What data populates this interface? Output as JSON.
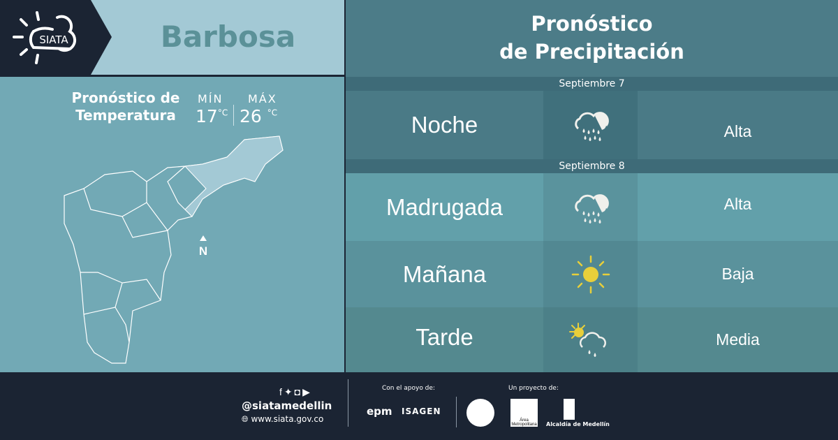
{
  "logo": {
    "text": "SIATA"
  },
  "header": {
    "city": "Barbosa",
    "title_line1": "Pronóstico",
    "title_line2": "de Precipitación"
  },
  "temperature": {
    "title_line1": "Pronóstico de",
    "title_line2": "Temperatura",
    "min_label": "MÍN",
    "min_value": "17",
    "max_label": "MÁX",
    "max_value": "26",
    "unit": "°C"
  },
  "map": {
    "north_label": "N"
  },
  "forecast": [
    {
      "date": "Septiembre 7",
      "periods": [
        {
          "period": "Noche",
          "icon": "heavy-rain-icon",
          "level": "Alta",
          "bg": "#4a7a86"
        }
      ]
    },
    {
      "date": "Septiembre 8",
      "periods": [
        {
          "period": "Madrugada",
          "icon": "heavy-rain-icon",
          "level": "Alta",
          "bg": "#62a0aa"
        },
        {
          "period": "Mañana",
          "icon": "sun-icon",
          "level": "Baja",
          "bg": "#5a929c"
        },
        {
          "period": "Tarde",
          "icon": "sun-cloud-rain-icon",
          "level": "Media",
          "bg": "#54898f"
        }
      ]
    }
  ],
  "footer": {
    "handle": "@siatamedellin",
    "website": "www.siata.gov.co",
    "support_label": "Con el apoyo de:",
    "support_logos": [
      "epm",
      "ISAGEN"
    ],
    "project_label": "Un proyecto de:",
    "project_logos": [
      "Área Metropolitana",
      "Alcaldía de Medellín"
    ]
  },
  "colors": {
    "navy": "#1b2433",
    "sun": "#e8cf3a"
  }
}
